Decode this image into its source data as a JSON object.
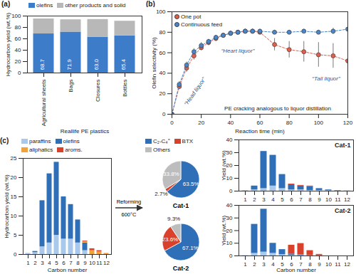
{
  "chart_data": [
    {
      "panel_label": "(a)",
      "type": "bar",
      "stacked": true,
      "x_label": "Reallife PE plastics",
      "y_label": "Hydrocarbon yield (wt.%)",
      "categories": [
        "Agricultural sheets",
        "Bags",
        "Closures",
        "Bottles"
      ],
      "series": [
        {
          "name": "olefins",
          "color": "#3d7cc9",
          "values": [
            68.7,
            71.9,
            63.0,
            65.4
          ],
          "value_labels": [
            "68.7",
            "71.9",
            "63.0",
            "65.4"
          ]
        },
        {
          "name": "other products and solid",
          "color": "#b8b8b8",
          "values": [
            26.3,
            21.6,
            31.0,
            25.6
          ]
        }
      ],
      "ylim": [
        0,
        100
      ],
      "yticks": [
        0,
        20,
        40,
        60,
        80,
        100
      ],
      "data_labels": true,
      "legend": "top"
    },
    {
      "panel_label": "(b)",
      "type": "line",
      "x_label": "Reaction time (min)",
      "y_label": "Olefin selectivity (%)",
      "x": [
        0,
        5,
        10,
        15,
        20,
        25,
        30,
        35,
        40,
        45,
        50,
        55,
        60,
        70,
        80,
        90,
        100,
        110,
        120
      ],
      "series": [
        {
          "name": "One pot",
          "color": "#e0604d",
          "values": [
            0,
            27,
            45,
            57,
            65,
            70,
            74,
            77,
            79,
            80,
            81,
            81,
            80,
            68,
            63,
            61,
            58,
            57,
            52
          ],
          "errors": [
            0,
            3,
            4,
            4,
            3,
            3,
            3,
            2,
            2,
            2,
            2,
            2,
            2,
            6,
            8,
            10,
            12,
            12,
            14
          ]
        },
        {
          "name": "Continuous feed",
          "color": "#4a86c8",
          "values": [
            0,
            29,
            48,
            61,
            67,
            71,
            75,
            77,
            79,
            80,
            81,
            81,
            81,
            80,
            80,
            81,
            80,
            81,
            83
          ],
          "errors": [
            0,
            3,
            3,
            3,
            3,
            2,
            2,
            2,
            2,
            2,
            2,
            2,
            2,
            2,
            2,
            2,
            2,
            3,
            3
          ]
        }
      ],
      "marker": "circle",
      "line_style": "dashed",
      "xlim": [
        0,
        120
      ],
      "xticks": [
        0,
        20,
        40,
        60,
        80,
        100,
        120
      ],
      "ylim": [
        0,
        100
      ],
      "yticks": [
        0,
        20,
        40,
        60,
        80,
        100
      ],
      "legend": "top-left",
      "annotations": [
        "“Head liquor”",
        "“Heart liquor”",
        "“Tail liquor”",
        "PE cracking analogous to liquor distillation"
      ]
    },
    {
      "panel_label": "(c)",
      "type": "bar",
      "stacked": true,
      "x_label": "Carbon number",
      "y_label": "Hydrocarbon yield (wt.%)",
      "categories": [
        1,
        2,
        3,
        4,
        5,
        6,
        7,
        8,
        9,
        10,
        11,
        12
      ],
      "series": [
        {
          "name": "paraffins",
          "color": "#a8c8ec",
          "values": [
            0.3,
            0.5,
            2,
            3,
            5,
            4,
            4,
            3,
            1,
            0,
            0,
            0
          ]
        },
        {
          "name": "olefins",
          "color": "#2f6fb8",
          "values": [
            0,
            0.3,
            12,
            18,
            19,
            11,
            9,
            6,
            2,
            0,
            0,
            0
          ]
        },
        {
          "name": "aliphatics",
          "color": "#f2a23a",
          "values": [
            0,
            0,
            0,
            0,
            0,
            0,
            0,
            0,
            0.3,
            1,
            0.7,
            0.3
          ]
        },
        {
          "name": "aroms.",
          "color": "#d9412b",
          "values": [
            0,
            0,
            0,
            0,
            0,
            0,
            0,
            0,
            0.2,
            0.5,
            0.3,
            0
          ]
        }
      ],
      "ylim": [
        0,
        25
      ],
      "yticks": [
        0,
        5,
        10,
        15,
        20,
        25
      ],
      "legend": "top"
    },
    {
      "type": "pie",
      "annotations": [
        "Reforming",
        "600°C"
      ],
      "categories": [
        "C₂-C₄⁼",
        "BTX",
        "Others"
      ],
      "colors": [
        "#2f6fb8",
        "#d9412b",
        "#bdbdbd"
      ],
      "pies": [
        {
          "title": "Cat-1",
          "values": [
            63.5,
            2.7,
            33.8
          ],
          "value_labels": [
            "63.5%",
            "2.7%",
            "33.8%"
          ]
        },
        {
          "title": "Cat-2",
          "values": [
            67.1,
            23.6,
            9.3
          ],
          "value_labels": [
            "67.1%",
            "23.6%",
            "9.3%"
          ]
        }
      ],
      "data_labels": true,
      "legend": "top"
    },
    {
      "type": "bar",
      "stacked": true,
      "title": "Cat-1",
      "y_label": "Yield (wt.%)",
      "categories": [
        1,
        2,
        3,
        4,
        5,
        6,
        7,
        8,
        9,
        10,
        11,
        12
      ],
      "series": [
        {
          "name": "paraffins",
          "color": "#a8c8ec",
          "values": [
            0.5,
            1,
            2,
            4,
            2,
            1,
            1,
            0.5,
            0.5,
            0.3,
            0.2,
            0.1
          ]
        },
        {
          "name": "olefins",
          "color": "#2f6fb8",
          "values": [
            0,
            3,
            29,
            24,
            11,
            4,
            3,
            3,
            1.5,
            0.7,
            0.3,
            0.1
          ]
        },
        {
          "name": "aroms.",
          "color": "#d9412b",
          "values": [
            0,
            0,
            0,
            0,
            0,
            0.5,
            0.5,
            0.5,
            0,
            0,
            0,
            0
          ]
        }
      ],
      "ylim": [
        0,
        40
      ],
      "yticks": [
        0,
        10,
        20,
        30,
        40
      ]
    },
    {
      "type": "bar",
      "stacked": true,
      "title": "Cat-2",
      "x_label": "Carbon number",
      "y_label": "Yield (wt.%)",
      "categories": [
        1,
        2,
        3,
        4,
        5,
        6,
        7,
        8,
        9,
        10,
        11,
        12
      ],
      "series": [
        {
          "name": "paraffins",
          "color": "#a8c8ec",
          "values": [
            0.3,
            2,
            3,
            2,
            1,
            0.5,
            0.3,
            0.2,
            0.2,
            0,
            0,
            0
          ]
        },
        {
          "name": "olefins",
          "color": "#2f6fb8",
          "values": [
            0,
            23,
            34,
            8,
            4,
            1,
            0.5,
            0,
            0,
            0,
            0,
            0
          ]
        },
        {
          "name": "aroms.",
          "color": "#d9412b",
          "values": [
            0,
            0,
            0,
            0,
            0,
            7,
            9,
            4,
            1,
            0,
            0,
            0
          ]
        }
      ],
      "ylim": [
        0,
        40
      ],
      "yticks": [
        0,
        10,
        20,
        30,
        40
      ]
    }
  ]
}
